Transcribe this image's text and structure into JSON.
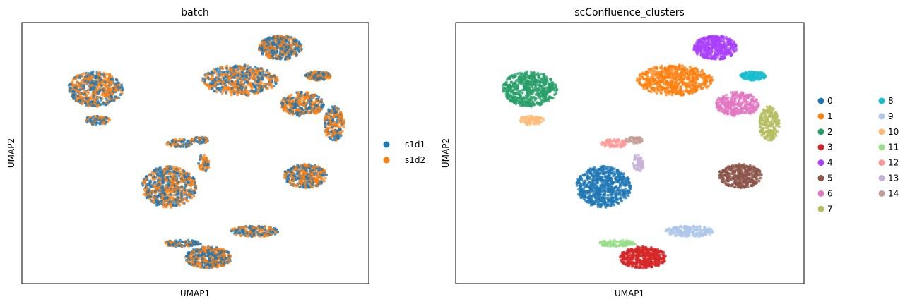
{
  "colors": {
    "palette": [
      "#1f77b4",
      "#ff7f0e",
      "#279e68",
      "#d62728",
      "#aa40fc",
      "#8c564b",
      "#e377c2",
      "#b5bd61",
      "#17becf",
      "#aec7e8",
      "#ffbb78",
      "#98df8a",
      "#ff9896",
      "#c5b0d5",
      "#c49c94"
    ],
    "frame": "#000000"
  },
  "chart_data": [
    {
      "type": "scatter",
      "title": "batch",
      "xlabel": "UMAP1",
      "ylabel": "UMAP2",
      "xticks": "none",
      "yticks": "none",
      "grid": false,
      "legend_placement": "right",
      "xlim": [
        -12,
        12
      ],
      "ylim": [
        -12,
        12
      ],
      "series": [
        {
          "name": "s1d1",
          "color": "#1f77b4"
        },
        {
          "name": "s1d2",
          "color": "#ff7f0e"
        }
      ],
      "regions": [
        {
          "cx": -6.9,
          "cy": 5.9,
          "rx": 1.9,
          "ry": 1.6,
          "n": 520,
          "label": "2"
        },
        {
          "cx": -6.8,
          "cy": 3.0,
          "rx": 0.9,
          "ry": 0.4,
          "n": 80,
          "label": "10"
        },
        {
          "cx": -1.1,
          "cy": 0.9,
          "rx": 0.9,
          "ry": 0.4,
          "n": 70,
          "label": "12"
        },
        {
          "cx": -1.8,
          "cy": -3.1,
          "rx": 1.9,
          "ry": 1.9,
          "n": 620,
          "label": "0"
        },
        {
          "cx": 0.6,
          "cy": -0.9,
          "rx": 0.4,
          "ry": 0.8,
          "n": 60,
          "label": "13"
        },
        {
          "cx": 0.3,
          "cy": 1.2,
          "rx": 0.6,
          "ry": 0.3,
          "n": 50,
          "label": "14"
        },
        {
          "cx": 3.1,
          "cy": 6.7,
          "rx": 2.6,
          "ry": 1.4,
          "n": 560,
          "label": "1"
        },
        {
          "cx": 5.9,
          "cy": 9.7,
          "rx": 1.5,
          "ry": 1.1,
          "n": 420,
          "label": "4"
        },
        {
          "cx": 8.5,
          "cy": 7.1,
          "rx": 0.9,
          "ry": 0.4,
          "n": 120,
          "label": "8"
        },
        {
          "cx": 7.4,
          "cy": 4.5,
          "rx": 1.5,
          "ry": 1.1,
          "n": 320,
          "label": "6"
        },
        {
          "cx": 9.6,
          "cy": 2.7,
          "rx": 0.7,
          "ry": 1.6,
          "n": 220,
          "label": "7"
        },
        {
          "cx": 7.6,
          "cy": -2.1,
          "rx": 1.5,
          "ry": 1.1,
          "n": 360,
          "label": "5"
        },
        {
          "cx": 0.9,
          "cy": -9.6,
          "rx": 1.6,
          "ry": 1.0,
          "n": 440,
          "label": "3"
        },
        {
          "cx": 4.1,
          "cy": -7.2,
          "rx": 1.7,
          "ry": 0.5,
          "n": 180,
          "label": "9"
        },
        {
          "cx": -0.9,
          "cy": -8.3,
          "rx": 1.3,
          "ry": 0.3,
          "n": 110,
          "label": "11"
        }
      ]
    },
    {
      "type": "scatter",
      "title": "scConfluence_clusters",
      "xlabel": "UMAP1",
      "ylabel": "UMAP2",
      "xticks": "none",
      "yticks": "none",
      "grid": false,
      "legend_placement": "right",
      "legend_columns": 2,
      "xlim": [
        -12,
        12
      ],
      "ylim": [
        -12,
        12
      ],
      "categories": [
        "0",
        "1",
        "2",
        "3",
        "4",
        "5",
        "6",
        "7",
        "8",
        "9",
        "10",
        "11",
        "12",
        "13",
        "14"
      ]
    }
  ]
}
